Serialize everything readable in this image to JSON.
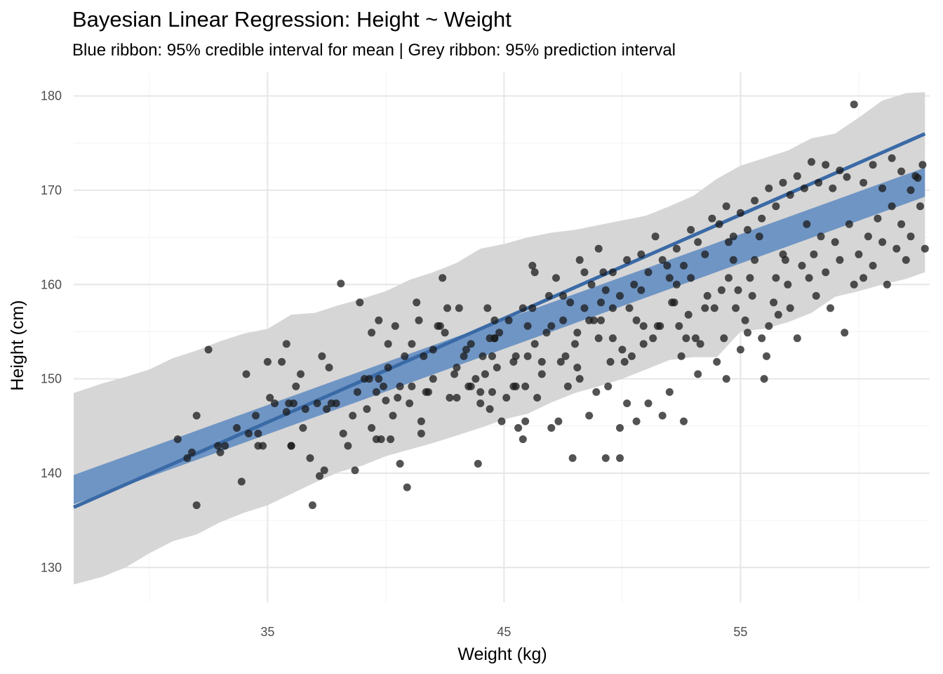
{
  "chart_data": {
    "type": "scatter",
    "title": "Bayesian Linear Regression: Height ~ Weight",
    "subtitle": "Blue ribbon: 95% credible interval for mean | Grey ribbon: 95% prediction interval",
    "xlabel": "Weight (kg)",
    "ylabel": "Height (cm)",
    "xlim": [
      26.8,
      63.0
    ],
    "ylim": [
      126.3,
      182.5
    ],
    "x_ticks": [
      35,
      45,
      55
    ],
    "y_ticks": [
      130,
      140,
      150,
      160,
      170,
      180
    ],
    "grid": true,
    "legend": "none",
    "colors": {
      "points": "#1a1a1a",
      "mean_line": "#3a6aa6",
      "credible_ribbon": "#6f95c4",
      "prediction_ribbon": "#d6d6d6",
      "grid": "#e6e6e6"
    },
    "regression": {
      "intercept": 106.9,
      "slope": 1.1,
      "x_range": [
        26.8,
        62.8
      ]
    },
    "credible_interval": {
      "x": [
        26.8,
        62.8
      ],
      "lower": [
        136.7,
        169.3
      ],
      "upper": [
        139.8,
        172.4
      ]
    },
    "prediction_interval": {
      "x": [
        26.8,
        28.0,
        29.0,
        30.0,
        31.0,
        32.0,
        33.0,
        34.0,
        35.0,
        36.0,
        37.0,
        38.0,
        39.0,
        40.0,
        41.0,
        42.0,
        43.0,
        44.0,
        45.0,
        46.0,
        47.0,
        48.0,
        49.0,
        50.0,
        51.0,
        52.0,
        53.0,
        54.0,
        55.0,
        56.0,
        57.0,
        58.0,
        59.0,
        60.0,
        61.0,
        62.0,
        62.8
      ],
      "lower": [
        128.2,
        129.0,
        130.0,
        131.5,
        132.8,
        133.5,
        134.8,
        135.8,
        136.6,
        137.8,
        139.0,
        140.1,
        140.8,
        141.8,
        142.5,
        143.2,
        144.0,
        144.8,
        145.7,
        146.3,
        147.5,
        148.5,
        149.2,
        150.0,
        151.0,
        152.0,
        152.3,
        152.3,
        155.0,
        155.3,
        156.0,
        157.0,
        158.7,
        159.3,
        160.0,
        160.6,
        161.3
      ],
      "upper": [
        148.5,
        149.5,
        150.2,
        151.0,
        152.2,
        153.0,
        154.0,
        154.8,
        155.3,
        156.8,
        157.0,
        157.8,
        158.5,
        159.3,
        160.5,
        161.3,
        162.3,
        163.8,
        164.3,
        165.0,
        165.5,
        165.8,
        166.3,
        166.8,
        167.3,
        168.3,
        169.4,
        171.2,
        172.6,
        173.4,
        174.2,
        175.5,
        176.0,
        177.7,
        179.5,
        180.3,
        180.4
      ]
    },
    "points": [
      [
        31.2,
        143.6
      ],
      [
        31.6,
        141.6
      ],
      [
        31.8,
        142.2
      ],
      [
        32.0,
        136.6
      ],
      [
        32.0,
        146.1
      ],
      [
        32.5,
        153.1
      ],
      [
        32.9,
        142.9
      ],
      [
        33.0,
        142.2
      ],
      [
        33.2,
        142.9
      ],
      [
        33.7,
        144.8
      ],
      [
        33.9,
        139.1
      ],
      [
        34.1,
        150.5
      ],
      [
        34.2,
        144.2
      ],
      [
        34.5,
        146.1
      ],
      [
        34.6,
        144.2
      ],
      [
        34.6,
        142.9
      ],
      [
        34.8,
        142.9
      ],
      [
        35.0,
        151.8
      ],
      [
        35.1,
        148.0
      ],
      [
        35.3,
        147.4
      ],
      [
        35.6,
        151.8
      ],
      [
        35.8,
        153.7
      ],
      [
        35.8,
        146.5
      ],
      [
        35.9,
        147.4
      ],
      [
        36.0,
        142.9
      ],
      [
        36.0,
        142.9
      ],
      [
        36.1,
        147.4
      ],
      [
        36.2,
        149.2
      ],
      [
        36.4,
        150.5
      ],
      [
        36.5,
        144.8
      ],
      [
        36.6,
        146.8
      ],
      [
        36.8,
        141.6
      ],
      [
        36.9,
        136.6
      ],
      [
        37.1,
        147.4
      ],
      [
        37.2,
        139.7
      ],
      [
        37.3,
        152.4
      ],
      [
        37.4,
        140.3
      ],
      [
        37.5,
        146.8
      ],
      [
        37.6,
        151.2
      ],
      [
        37.7,
        147.4
      ],
      [
        37.9,
        147.4
      ],
      [
        38.1,
        160.1
      ],
      [
        38.2,
        144.2
      ],
      [
        38.4,
        142.9
      ],
      [
        38.6,
        146.1
      ],
      [
        38.7,
        140.3
      ],
      [
        38.8,
        148.6
      ],
      [
        39.1,
        150.0
      ],
      [
        39.2,
        146.8
      ],
      [
        39.3,
        150.0
      ],
      [
        39.4,
        144.8
      ],
      [
        39.6,
        143.6
      ],
      [
        39.6,
        148.6
      ],
      [
        39.7,
        150.0
      ],
      [
        39.8,
        143.6
      ],
      [
        39.9,
        149.2
      ],
      [
        40.0,
        147.7
      ],
      [
        40.1,
        151.2
      ],
      [
        40.2,
        143.6
      ],
      [
        40.3,
        146.1
      ],
      [
        40.5,
        148.0
      ],
      [
        40.6,
        141.0
      ],
      [
        40.6,
        149.2
      ],
      [
        40.9,
        138.5
      ],
      [
        41.0,
        147.4
      ],
      [
        41.1,
        153.7
      ],
      [
        41.3,
        158.1
      ],
      [
        41.4,
        156.2
      ],
      [
        41.5,
        144.2
      ],
      [
        41.5,
        145.5
      ],
      [
        41.6,
        152.4
      ],
      [
        41.7,
        148.6
      ],
      [
        41.8,
        148.6
      ],
      [
        42.0,
        153.1
      ],
      [
        42.2,
        155.6
      ],
      [
        42.4,
        160.7
      ],
      [
        42.5,
        154.9
      ],
      [
        42.7,
        148.0
      ],
      [
        42.9,
        150.5
      ],
      [
        43.0,
        148.0
      ],
      [
        43.1,
        157.5
      ],
      [
        43.3,
        152.4
      ],
      [
        43.5,
        149.2
      ],
      [
        43.6,
        153.7
      ],
      [
        43.8,
        150.0
      ],
      [
        43.9,
        141.0
      ],
      [
        44.0,
        148.6
      ],
      [
        44.0,
        147.4
      ],
      [
        44.1,
        152.4
      ],
      [
        44.3,
        157.5
      ],
      [
        44.4,
        154.3
      ],
      [
        44.5,
        152.4
      ],
      [
        44.5,
        148.6
      ],
      [
        44.6,
        154.3
      ],
      [
        44.6,
        154.3
      ],
      [
        44.6,
        156.2
      ],
      [
        44.7,
        151.2
      ],
      [
        44.9,
        145.5
      ],
      [
        45.1,
        148.0
      ],
      [
        45.4,
        151.8
      ],
      [
        45.4,
        149.2
      ],
      [
        45.5,
        149.2
      ],
      [
        45.6,
        144.8
      ],
      [
        45.8,
        143.6
      ],
      [
        45.9,
        145.5
      ],
      [
        45.9,
        149.2
      ],
      [
        46.0,
        152.4
      ],
      [
        46.2,
        157.5
      ],
      [
        46.2,
        162.0
      ],
      [
        46.3,
        161.3
      ],
      [
        46.4,
        148.0
      ],
      [
        46.6,
        150.5
      ],
      [
        46.8,
        154.9
      ],
      [
        47.0,
        155.6
      ],
      [
        47.0,
        144.8
      ],
      [
        47.3,
        145.5
      ],
      [
        47.4,
        151.8
      ],
      [
        47.5,
        158.8
      ],
      [
        47.6,
        152.4
      ],
      [
        47.7,
        149.2
      ],
      [
        47.9,
        141.6
      ],
      [
        48.0,
        153.7
      ],
      [
        48.1,
        151.2
      ],
      [
        48.2,
        162.6
      ],
      [
        48.2,
        150.0
      ],
      [
        48.4,
        161.3
      ],
      [
        48.6,
        146.1
      ],
      [
        48.6,
        156.2
      ],
      [
        48.8,
        156.2
      ],
      [
        48.9,
        148.6
      ],
      [
        49.0,
        154.3
      ],
      [
        49.1,
        156.2
      ],
      [
        49.1,
        158.1
      ],
      [
        49.2,
        161.3
      ],
      [
        49.3,
        141.6
      ],
      [
        49.4,
        149.2
      ],
      [
        49.5,
        151.8
      ],
      [
        49.6,
        154.3
      ],
      [
        49.6,
        157.5
      ],
      [
        49.9,
        144.8
      ],
      [
        49.9,
        141.6
      ],
      [
        50.0,
        153.1
      ],
      [
        50.1,
        151.8
      ],
      [
        50.2,
        147.4
      ],
      [
        50.3,
        157.5
      ],
      [
        50.4,
        152.4
      ],
      [
        50.6,
        145.5
      ],
      [
        50.6,
        156.2
      ],
      [
        50.8,
        159.4
      ],
      [
        50.9,
        155.6
      ],
      [
        50.9,
        153.7
      ],
      [
        51.1,
        147.4
      ],
      [
        51.3,
        154.3
      ],
      [
        51.5,
        155.6
      ],
      [
        51.6,
        155.6
      ],
      [
        51.7,
        146.1
      ],
      [
        51.9,
        162.0
      ],
      [
        52.0,
        148.6
      ],
      [
        52.1,
        158.1
      ],
      [
        52.2,
        158.1
      ],
      [
        52.3,
        160.0
      ],
      [
        52.4,
        155.6
      ],
      [
        52.5,
        152.4
      ],
      [
        52.6,
        145.5
      ],
      [
        52.7,
        154.3
      ],
      [
        52.8,
        156.8
      ],
      [
        52.9,
        160.7
      ],
      [
        53.1,
        154.3
      ],
      [
        53.2,
        150.5
      ],
      [
        53.3,
        153.7
      ],
      [
        53.5,
        157.5
      ],
      [
        53.6,
        158.8
      ],
      [
        53.9,
        157.5
      ],
      [
        54.0,
        151.8
      ],
      [
        54.2,
        159.4
      ],
      [
        54.3,
        154.3
      ],
      [
        54.4,
        150.0
      ],
      [
        54.5,
        164.5
      ],
      [
        54.5,
        160.7
      ],
      [
        54.7,
        162.6
      ],
      [
        54.8,
        157.5
      ],
      [
        54.9,
        159.4
      ],
      [
        55.0,
        153.1
      ],
      [
        55.2,
        156.2
      ],
      [
        55.3,
        154.9
      ],
      [
        55.4,
        160.7
      ],
      [
        55.5,
        158.8
      ],
      [
        55.6,
        162.6
      ],
      [
        55.8,
        165.1
      ],
      [
        55.9,
        154.3
      ],
      [
        56.0,
        150.0
      ],
      [
        56.1,
        152.4
      ],
      [
        56.2,
        155.6
      ],
      [
        56.4,
        158.1
      ],
      [
        56.5,
        160.7
      ],
      [
        56.6,
        156.8
      ],
      [
        56.8,
        163.2
      ],
      [
        56.9,
        162.6
      ],
      [
        57.0,
        160.0
      ],
      [
        57.1,
        157.5
      ],
      [
        57.4,
        154.3
      ],
      [
        57.6,
        162.0
      ],
      [
        57.8,
        166.4
      ],
      [
        57.9,
        160.7
      ],
      [
        58.1,
        163.2
      ],
      [
        58.2,
        158.8
      ],
      [
        58.4,
        165.1
      ],
      [
        58.6,
        161.3
      ],
      [
        58.8,
        157.5
      ],
      [
        59.0,
        164.5
      ],
      [
        59.2,
        162.6
      ],
      [
        59.4,
        154.9
      ],
      [
        59.6,
        166.4
      ],
      [
        59.8,
        160.0
      ],
      [
        60.0,
        163.2
      ],
      [
        60.2,
        160.7
      ],
      [
        60.4,
        165.1
      ],
      [
        60.6,
        162.0
      ],
      [
        60.8,
        167.0
      ],
      [
        61.0,
        164.5
      ],
      [
        61.2,
        160.0
      ],
      [
        61.4,
        168.3
      ],
      [
        61.6,
        163.8
      ],
      [
        61.8,
        166.4
      ],
      [
        62.0,
        162.6
      ],
      [
        62.2,
        165.1
      ],
      [
        62.4,
        171.5
      ],
      [
        62.6,
        168.3
      ],
      [
        62.8,
        163.8
      ],
      [
        38.9,
        158.1
      ],
      [
        39.4,
        154.9
      ],
      [
        39.7,
        156.2
      ],
      [
        40.1,
        153.7
      ],
      [
        40.4,
        155.6
      ],
      [
        40.8,
        152.4
      ],
      [
        41.1,
        149.2
      ],
      [
        42.0,
        150.0
      ],
      [
        42.3,
        155.6
      ],
      [
        42.6,
        157.5
      ],
      [
        43.0,
        151.2
      ],
      [
        43.4,
        153.1
      ],
      [
        43.6,
        149.2
      ],
      [
        44.2,
        150.5
      ],
      [
        44.4,
        146.8
      ],
      [
        44.8,
        154.9
      ],
      [
        45.2,
        156.2
      ],
      [
        45.5,
        152.4
      ],
      [
        45.8,
        157.5
      ],
      [
        46.0,
        155.6
      ],
      [
        46.3,
        153.7
      ],
      [
        46.6,
        151.8
      ],
      [
        46.9,
        158.8
      ],
      [
        47.2,
        160.7
      ],
      [
        47.5,
        156.2
      ],
      [
        47.8,
        158.1
      ],
      [
        48.1,
        154.9
      ],
      [
        48.4,
        157.5
      ],
      [
        48.7,
        160.0
      ],
      [
        49.0,
        163.8
      ],
      [
        49.3,
        159.4
      ],
      [
        49.6,
        161.3
      ],
      [
        49.9,
        158.8
      ],
      [
        50.2,
        162.6
      ],
      [
        50.5,
        160.0
      ],
      [
        50.8,
        163.2
      ],
      [
        51.1,
        161.3
      ],
      [
        51.4,
        165.1
      ],
      [
        51.7,
        162.6
      ],
      [
        52.0,
        160.7
      ],
      [
        52.3,
        163.8
      ],
      [
        52.6,
        162.0
      ],
      [
        52.9,
        165.8
      ],
      [
        53.2,
        164.5
      ],
      [
        53.5,
        163.2
      ],
      [
        53.8,
        167.0
      ],
      [
        54.1,
        166.4
      ],
      [
        54.4,
        168.3
      ],
      [
        54.7,
        165.1
      ],
      [
        55.0,
        167.6
      ],
      [
        55.3,
        165.8
      ],
      [
        55.6,
        168.9
      ],
      [
        55.9,
        167.0
      ],
      [
        56.2,
        170.2
      ],
      [
        56.5,
        168.3
      ],
      [
        56.8,
        170.8
      ],
      [
        57.1,
        169.5
      ],
      [
        57.4,
        171.5
      ],
      [
        57.7,
        170.2
      ],
      [
        58.0,
        173.0
      ],
      [
        58.3,
        170.8
      ],
      [
        58.6,
        172.7
      ],
      [
        58.9,
        170.2
      ],
      [
        59.2,
        172.1
      ],
      [
        59.5,
        171.4
      ],
      [
        59.8,
        179.1
      ],
      [
        60.2,
        170.8
      ],
      [
        60.6,
        172.7
      ],
      [
        61.0,
        170.2
      ],
      [
        61.4,
        173.4
      ],
      [
        61.8,
        172.0
      ],
      [
        62.2,
        170.0
      ],
      [
        62.5,
        171.3
      ],
      [
        62.7,
        172.7
      ]
    ]
  }
}
